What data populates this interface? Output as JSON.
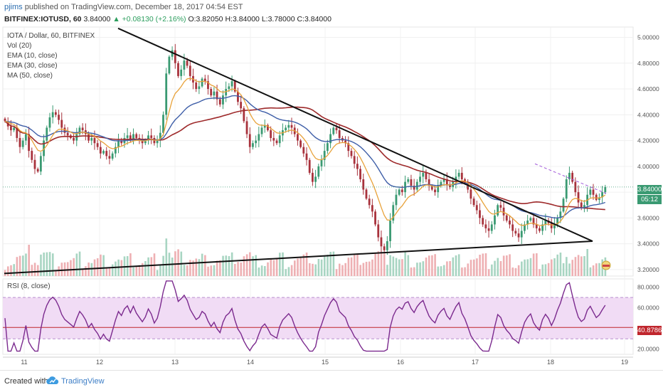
{
  "header": {
    "author": "pjims",
    "published_text": "published on TradingView.com, December 18, 2017 04:54 EST",
    "symbol": "BITFINEX:IOTUSD, 60",
    "last": "3.84000",
    "change": "▲ +0.08130 (+2.16%)",
    "open": "O:3.82050",
    "high": "H:3.84000",
    "low": "L:3.78000",
    "close": "C:3.84000"
  },
  "legend": {
    "title": "IOTA / Dollar, 60, BITFINEX",
    "vol": "Vol (20)",
    "ema10": "EMA (10, close)",
    "ema30": "EMA (30, close)",
    "ma50": "MA (50, close)"
  },
  "rsi": {
    "label": "RSI (8, close)",
    "current_tag": "40.8786"
  },
  "tags": {
    "price": "3.84000",
    "countdown": "05:12"
  },
  "footer": {
    "created_with": "Created with",
    "brand": "TradingView"
  },
  "colors": {
    "up": "#3a9a72",
    "down": "#a8323c",
    "ema10": "#e8a23a",
    "ema30": "#3f5fa8",
    "ma50": "#9e2a2b",
    "rsi": "#7b2a8e",
    "rsi_band": "#f1dcf5",
    "vol_up": "#a8d5c2",
    "vol_down": "#eeb0b3"
  },
  "chart_data": [
    {
      "type": "candlestick",
      "title": "IOTA / Dollar, 60, BITFINEX",
      "x_ticks": [
        "11",
        "12",
        "13",
        "14",
        "15",
        "16",
        "17",
        "18",
        "19"
      ],
      "y_ticks": [
        "5.00000",
        "4.80000",
        "4.60000",
        "4.40000",
        "4.20000",
        "4.00000",
        "3.80000",
        "3.60000",
        "3.40000",
        "3.20000"
      ],
      "ylim": [
        3.15,
        5.08
      ],
      "close": [
        4.35,
        4.31,
        4.28,
        4.3,
        4.22,
        4.15,
        4.2,
        4.25,
        4.12,
        4.05,
        3.98,
        3.96,
        4.08,
        4.2,
        4.3,
        4.38,
        4.42,
        4.4,
        4.36,
        4.3,
        4.26,
        4.24,
        4.22,
        4.2,
        4.25,
        4.3,
        4.28,
        4.25,
        4.2,
        4.22,
        4.18,
        4.15,
        4.1,
        4.12,
        4.08,
        4.06,
        4.1,
        4.15,
        4.2,
        4.18,
        4.22,
        4.24,
        4.21,
        4.25,
        4.22,
        4.2,
        4.18,
        4.2,
        4.24,
        4.22,
        4.18,
        4.2,
        4.26,
        4.4,
        4.72,
        4.85,
        4.9,
        4.8,
        4.7,
        4.75,
        4.82,
        4.78,
        4.7,
        4.65,
        4.6,
        4.62,
        4.68,
        4.66,
        4.6,
        4.55,
        4.58,
        4.52,
        4.48,
        4.55,
        4.6,
        4.62,
        4.66,
        4.58,
        4.5,
        4.45,
        4.35,
        4.25,
        4.15,
        4.18,
        4.2,
        4.25,
        4.3,
        4.32,
        4.28,
        4.22,
        4.2,
        4.18,
        4.24,
        4.28,
        4.3,
        4.32,
        4.3,
        4.25,
        4.2,
        4.15,
        4.1,
        4.05,
        3.95,
        3.88,
        3.92,
        4.0,
        4.05,
        4.12,
        4.18,
        4.25,
        4.3,
        4.28,
        4.22,
        4.2,
        4.18,
        4.12,
        4.08,
        4.02,
        3.98,
        3.9,
        3.82,
        3.75,
        3.7,
        3.65,
        3.55,
        3.45,
        3.38,
        3.35,
        3.42,
        3.58,
        3.7,
        3.78,
        3.82,
        3.8,
        3.88,
        3.9,
        3.85,
        3.82,
        3.88,
        3.92,
        3.95,
        3.9,
        3.85,
        3.82,
        3.8,
        3.85,
        3.88,
        3.9,
        3.86,
        3.84,
        3.88,
        3.92,
        3.95,
        3.9,
        3.87,
        3.82,
        3.75,
        3.7,
        3.66,
        3.6,
        3.55,
        3.52,
        3.5,
        3.55,
        3.62,
        3.7,
        3.68,
        3.62,
        3.58,
        3.55,
        3.5,
        3.48,
        3.45,
        3.5,
        3.55,
        3.58,
        3.6,
        3.55,
        3.52,
        3.5,
        3.55,
        3.58,
        3.56,
        3.52,
        3.55,
        3.6,
        3.65,
        3.75,
        3.9,
        3.95,
        3.88,
        3.8,
        3.72,
        3.68,
        3.7,
        3.78,
        3.82,
        3.78,
        3.74,
        3.76,
        3.8,
        3.84
      ],
      "series": [
        {
          "name": "EMA (10, close)"
        },
        {
          "name": "EMA (30, close)"
        },
        {
          "name": "MA (50, close)"
        }
      ],
      "annotations": [
        "descending resistance trendline",
        "ascending support trendline",
        "dashed short-term resistance"
      ]
    },
    {
      "type": "line",
      "title": "RSI (8, close)",
      "y_ticks": [
        "80.0000",
        "60.0000",
        "40.0000",
        "20.0000"
      ],
      "ylim": [
        15,
        88
      ],
      "bands": [
        30,
        70
      ],
      "current": 40.8786
    }
  ]
}
